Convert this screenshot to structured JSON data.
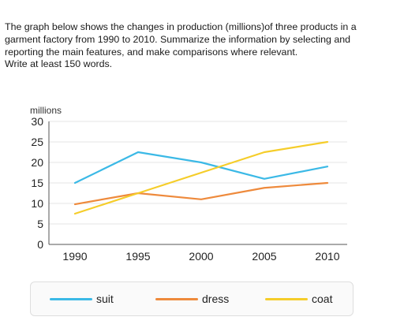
{
  "prompt": {
    "lines": [
      "The graph below shows the changes in production (millions)of three products in a",
      "garment factory from 1990 to 2010. Summarize the information by selecting and",
      "reporting the main features, and make comparisons where relevant.",
      "Write at least 150 words."
    ]
  },
  "chart_data": {
    "type": "line",
    "title": "",
    "xlabel": "",
    "ylabel": "millions",
    "categories": [
      "1990",
      "1995",
      "2000",
      "2005",
      "2010"
    ],
    "yticks": [
      0,
      5,
      10,
      15,
      20,
      25,
      30
    ],
    "ylim": [
      0,
      30
    ],
    "grid": true,
    "legend_position": "bottom",
    "series": [
      {
        "name": "suit",
        "color": "#3bb9e6",
        "values": [
          15,
          22.5,
          20,
          16,
          19
        ]
      },
      {
        "name": "dress",
        "color": "#ee8a3c",
        "values": [
          9.8,
          12.5,
          11,
          13.8,
          15
        ]
      },
      {
        "name": "coat",
        "color": "#f5cd2a",
        "values": [
          7.5,
          12.5,
          17.5,
          22.5,
          25
        ]
      }
    ]
  }
}
